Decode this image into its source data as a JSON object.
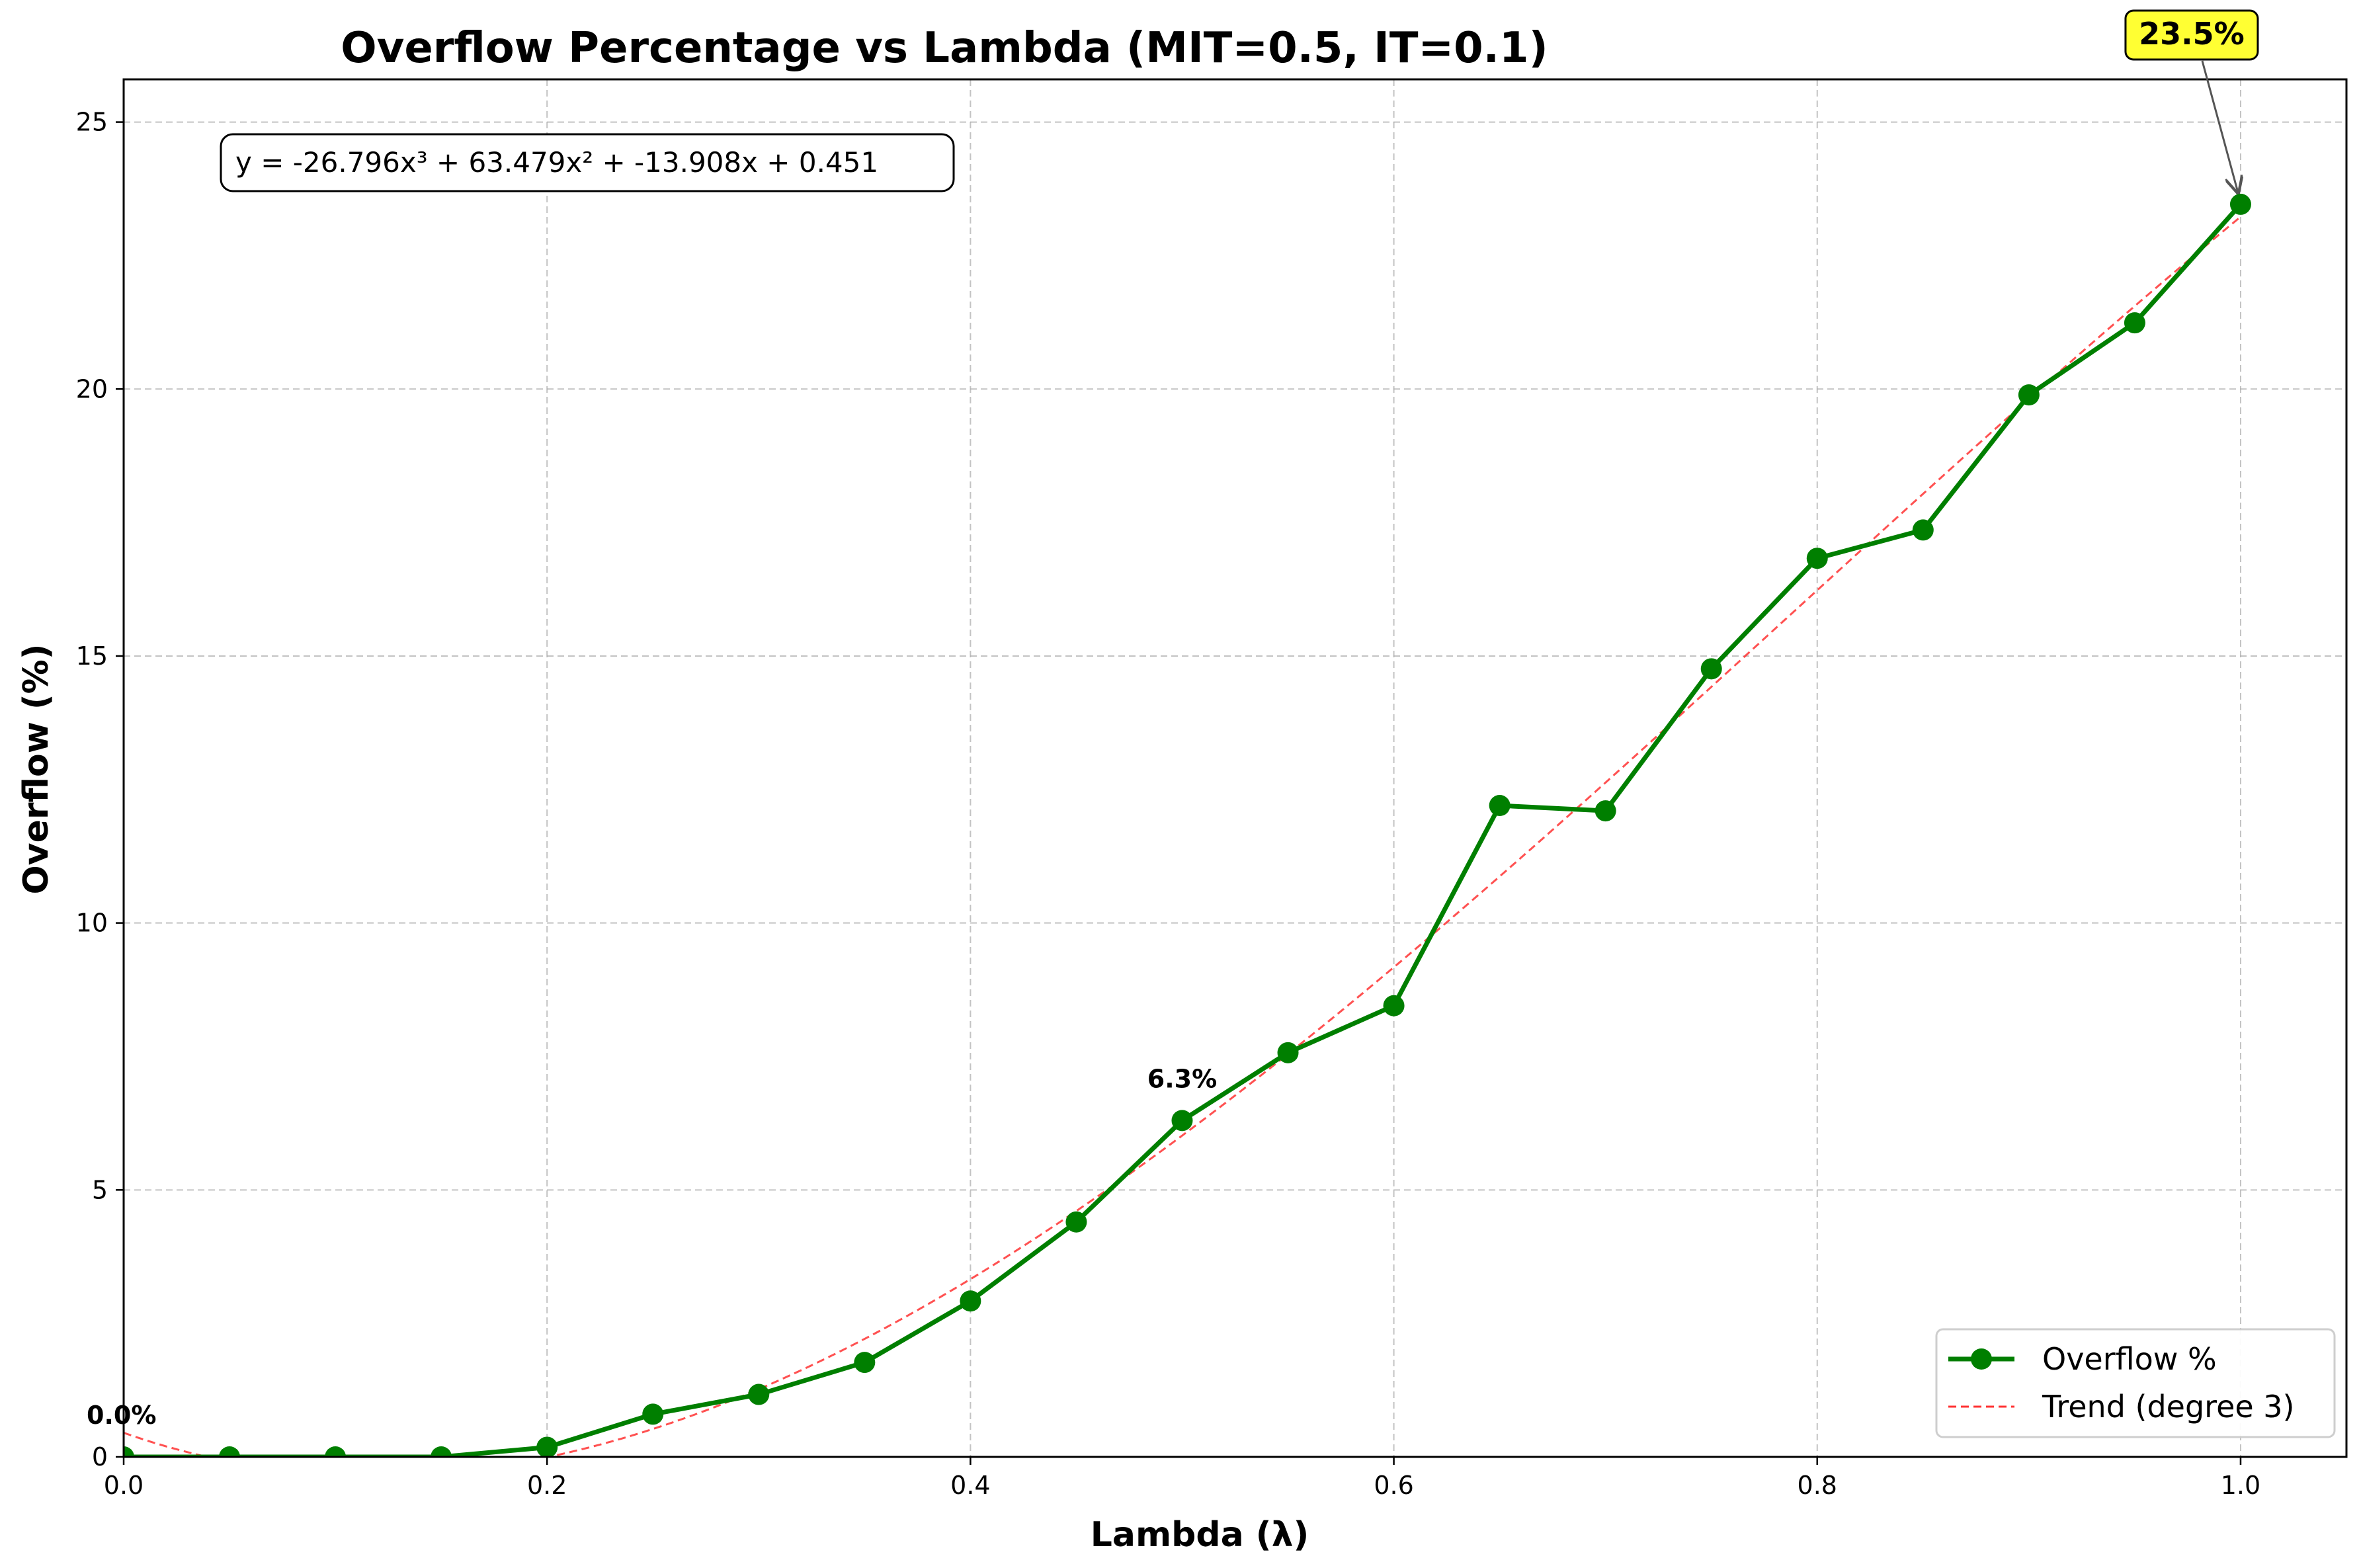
{
  "chart_data": {
    "type": "line",
    "title": "Overflow Percentage vs Lambda (MIT=0.5, IT=0.1)",
    "xlabel": "Lambda (λ)",
    "ylabel": "Overflow (%)",
    "xlim": [
      0.0,
      1.05
    ],
    "ylim": [
      0,
      25.8
    ],
    "x_ticks": [
      0.0,
      0.2,
      0.4,
      0.6,
      0.8,
      1.0
    ],
    "x_tick_labels": [
      "0.0",
      "0.2",
      "0.4",
      "0.6",
      "0.8",
      "1.0"
    ],
    "y_ticks": [
      0,
      5,
      10,
      15,
      20,
      25
    ],
    "y_tick_labels": [
      "0",
      "5",
      "10",
      "15",
      "20",
      "25"
    ],
    "grid": true,
    "legend_position": "lower-right",
    "x": [
      0.0,
      0.05,
      0.1,
      0.15,
      0.2,
      0.25,
      0.3,
      0.35,
      0.4,
      0.45,
      0.5,
      0.55,
      0.6,
      0.65,
      0.7,
      0.75,
      0.8,
      0.85,
      0.9,
      0.95,
      1.0
    ],
    "series": [
      {
        "name": "Overflow %",
        "color": "#007f00",
        "style": "solid-with-markers",
        "values": [
          0.0,
          0.0,
          0.0,
          0.0,
          0.18,
          0.8,
          1.17,
          1.77,
          2.92,
          4.4,
          6.3,
          7.57,
          8.45,
          12.2,
          12.1,
          14.76,
          16.83,
          17.36,
          19.89,
          21.24,
          23.46
        ]
      },
      {
        "name": "Trend (degree 3)",
        "color": "#ff3333",
        "style": "dashed",
        "coefficients": [
          -26.796,
          63.479,
          -13.908,
          0.451
        ]
      }
    ],
    "annotations": [
      {
        "text": "0.0%",
        "x": 0.0,
        "y": 0.0
      },
      {
        "text": "6.3%",
        "x": 0.5,
        "y": 6.3
      },
      {
        "text": "23.5%",
        "x": 1.0,
        "y": 23.46,
        "highlight": "#ffff33"
      }
    ],
    "equation_text": "y = -26.796x³ + 63.479x² + -13.908x + 0.451"
  }
}
